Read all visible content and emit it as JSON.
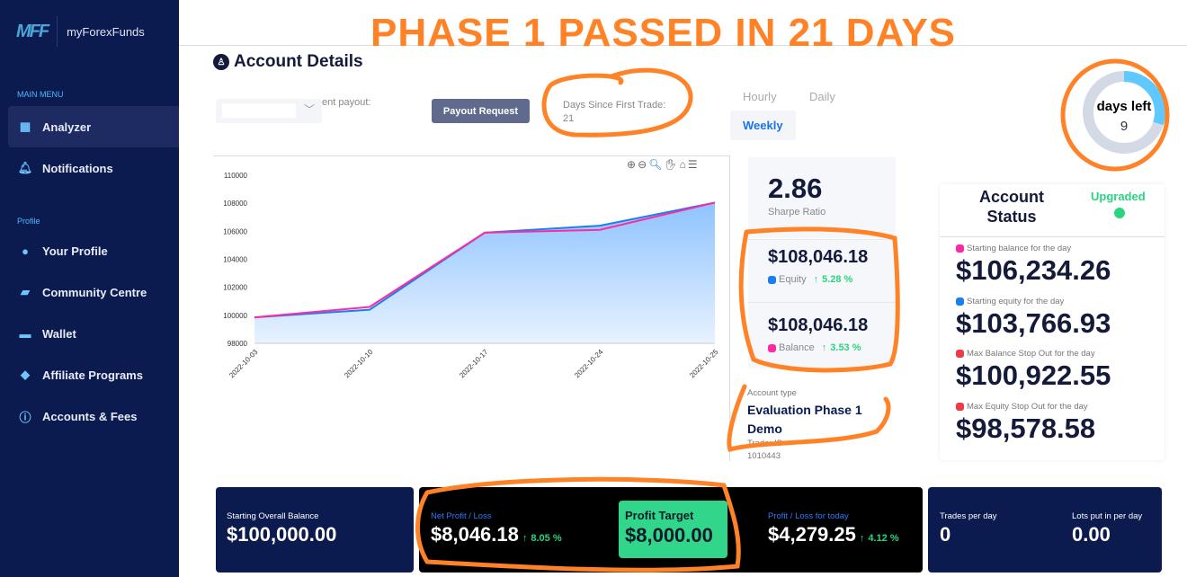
{
  "banner": "PHASE 1 PASSED IN 21 DAYS",
  "brand": {
    "mark": "MFF",
    "name": "myForexFunds"
  },
  "sidebar": {
    "main_menu": "MAIN MENU",
    "profile_head": "Profile",
    "items": [
      {
        "label": "Analyzer",
        "icon": "grid-icon"
      },
      {
        "label": "Notifications",
        "icon": "bell-icon"
      },
      {
        "label": "Your Profile",
        "icon": "user-icon"
      },
      {
        "label": "Community Centre",
        "icon": "chat-icon"
      },
      {
        "label": "Wallet",
        "icon": "wallet-icon"
      },
      {
        "label": "Affiliate Programs",
        "icon": "diamond-icon"
      },
      {
        "label": "Accounts & Fees",
        "icon": "info-icon"
      }
    ]
  },
  "header": {
    "title": "Account Details",
    "payout_label": "ent payout:",
    "payout_button": "Payout Request",
    "days_since_label": "Days Since First Trade:",
    "days_since_value": "21"
  },
  "tabs": [
    "Hourly",
    "Daily",
    "Weekly"
  ],
  "chart_data": {
    "type": "area",
    "categories": [
      "2022-10-03",
      "2022-10-10",
      "2022-10-17",
      "2022-10-24",
      "2022-10-25"
    ],
    "series": [
      {
        "name": "Equity",
        "color": "#1a7ff0",
        "values": [
          99850,
          100400,
          105900,
          106400,
          108046.18
        ]
      },
      {
        "name": "Balance",
        "color": "#ff2aa0",
        "values": [
          99850,
          100600,
          105900,
          106100,
          108046.18
        ]
      }
    ],
    "ylim": [
      98000,
      110000
    ],
    "yticks": [
      "98000",
      "100000",
      "102000",
      "104000",
      "106000",
      "108000",
      "110000"
    ]
  },
  "kpis": {
    "sharpe": "2.86",
    "sharpe_label": "Sharpe Ratio",
    "equity": "$108,046.18",
    "equity_label": "Equity",
    "equity_pct": "5.28 %",
    "balance": "$108,046.18",
    "balance_label": "Balance",
    "balance_pct": "3.53 %"
  },
  "account": {
    "type_label": "Account type",
    "type_value": "Evaluation Phase 1 Demo",
    "trader_label": "Trader ID",
    "trader_id": "1010443"
  },
  "days_left": {
    "label": "days left",
    "value": "9",
    "fraction": 0.3
  },
  "status": {
    "title": "Account Status",
    "state": "Upgraded",
    "items": [
      {
        "label": "Starting balance for the day",
        "value": "$106,234.26",
        "color": "#ff2aa0"
      },
      {
        "label": "Starting equity for the day",
        "value": "$103,766.93",
        "color": "#1a7ff0"
      },
      {
        "label": "Max Balance Stop Out for the day",
        "value": "$100,922.55",
        "color": "#ef3b45"
      },
      {
        "label": "Max Equity Stop Out for the day",
        "value": "$98,578.58",
        "color": "#ef3b45"
      }
    ]
  },
  "bottom": {
    "start_label": "Starting Overall Balance",
    "start_value": "$100,000.00",
    "net_label": "Net Profit / Loss",
    "net_value": "$8,046.18",
    "net_pct": "8.05 %",
    "target_label": "Profit Target",
    "target_value": "$8,000.00",
    "today_label": "Profit / Loss for today",
    "today_value": "$4,279.25",
    "today_pct": "4.12 %",
    "trades_label": "Trades per day",
    "trades_value": "0",
    "lots_label": "Lots put in per day",
    "lots_value": "0.00"
  }
}
